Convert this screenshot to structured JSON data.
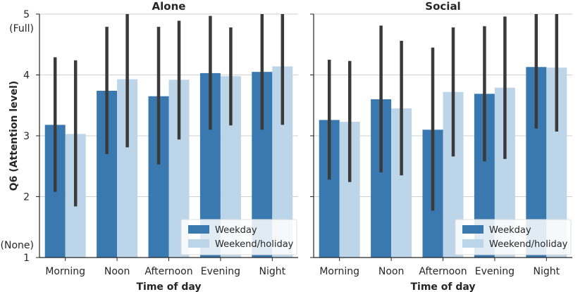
{
  "chart_data": {
    "type": "bar",
    "ylabel": "Q6 (Attention level)",
    "xlabel": "Time of day",
    "ylim": [
      1,
      5
    ],
    "yticks": [
      1,
      2,
      3,
      4,
      5
    ],
    "ytick_annotations": {
      "top": "(Full)",
      "bottom": "(None)"
    },
    "categories": [
      "Morning",
      "Noon",
      "Afternoon",
      "Evening",
      "Night"
    ],
    "legend_position": "lower-right",
    "grid": "horizontal",
    "colors": {
      "Weekday": "#3a78b0",
      "Weekend/holiday": "#bdd5e8",
      "errorbar": "#3a3a3a",
      "grid": "#cfcfcf"
    },
    "panels": [
      {
        "title": "Alone",
        "series": [
          {
            "name": "Weekday",
            "values": [
              3.18,
              3.74,
              3.65,
              4.03,
              4.05
            ],
            "ci_low": [
              2.08,
              2.7,
              2.53,
              3.1,
              3.1
            ],
            "ci_high": [
              4.29,
              4.79,
              4.79,
              4.97,
              5.0
            ]
          },
          {
            "name": "Weekend/holiday",
            "values": [
              3.03,
              3.93,
              3.92,
              3.98,
              4.14
            ],
            "ci_low": [
              1.84,
              2.81,
              2.94,
              3.17,
              3.18
            ],
            "ci_high": [
              4.24,
              5.0,
              4.89,
              4.78,
              5.0
            ]
          }
        ]
      },
      {
        "title": "Social",
        "series": [
          {
            "name": "Weekday",
            "values": [
              3.26,
              3.6,
              3.1,
              3.69,
              4.13
            ],
            "ci_low": [
              2.28,
              2.4,
              1.77,
              2.58,
              3.12
            ],
            "ci_high": [
              4.25,
              4.81,
              4.45,
              4.8,
              5.0
            ]
          },
          {
            "name": "Weekend/holiday",
            "values": [
              3.23,
              3.45,
              3.72,
              3.79,
              4.12
            ],
            "ci_low": [
              2.24,
              2.35,
              2.66,
              2.62,
              3.07
            ],
            "ci_high": [
              4.23,
              4.56,
              4.78,
              4.96,
              5.0
            ]
          }
        ]
      }
    ]
  }
}
